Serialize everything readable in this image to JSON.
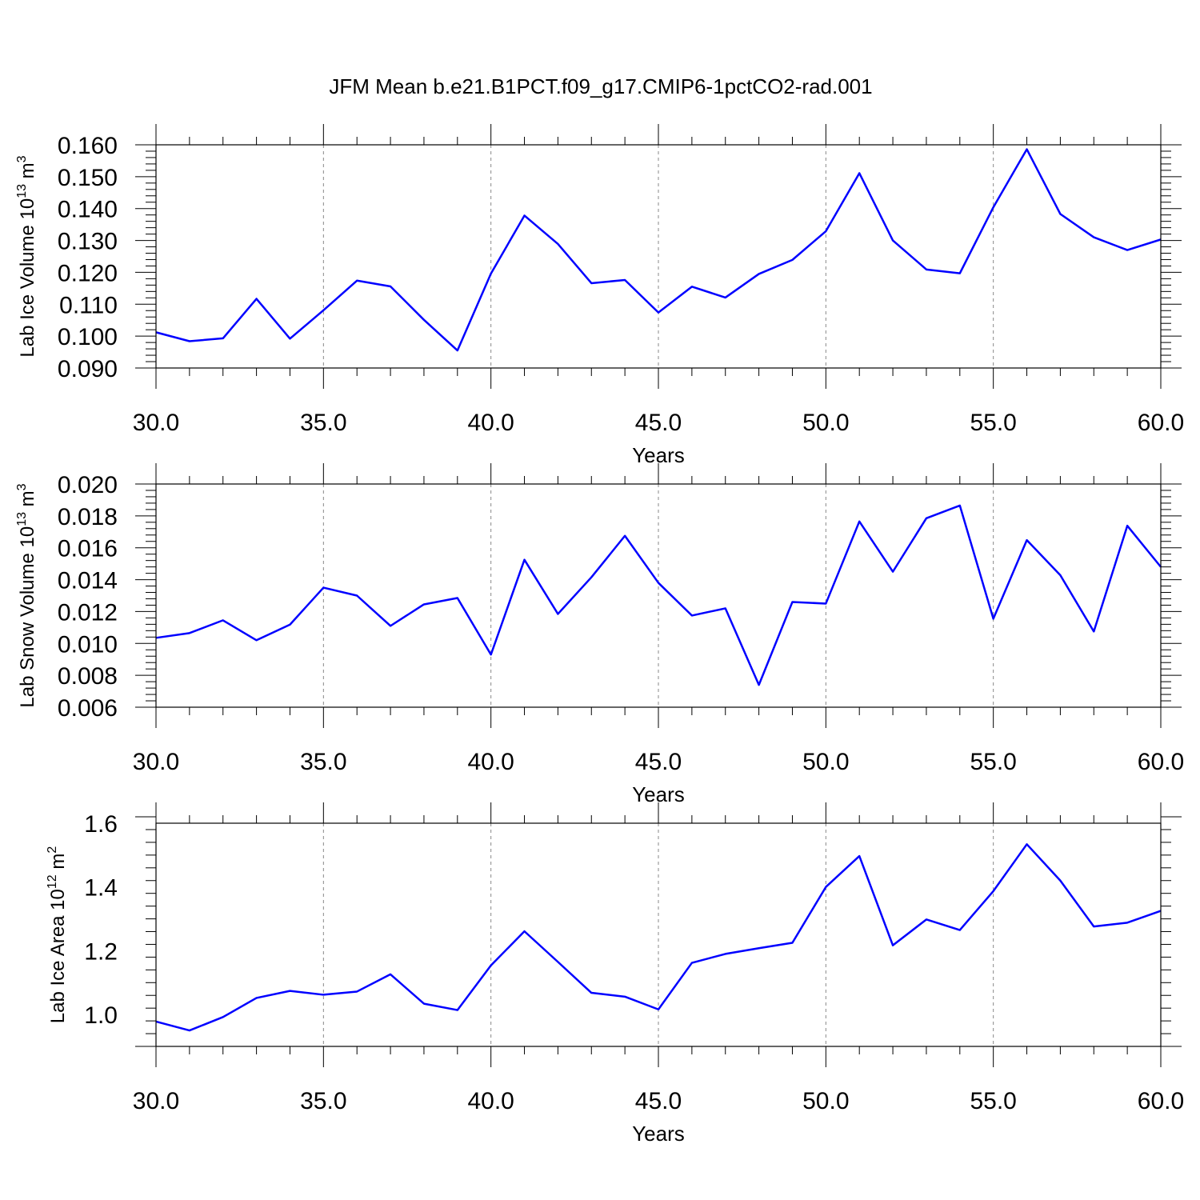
{
  "title": "JFM Mean b.e21.B1PCT.f09_g17.CMIP6-1pctCO2-rad.001",
  "colors": {
    "line": "#0000ff",
    "axis": "#000000",
    "grid": "#888888"
  },
  "chart_data": [
    {
      "type": "line",
      "ylabel": {
        "text": "Lab Ice Volume 10",
        "exp": "13",
        "unit": " m",
        "unit_exp": "3"
      },
      "xlabel": "Years",
      "xlim": [
        30,
        60
      ],
      "ylim": [
        0.09,
        0.16
      ],
      "x_ticks": [
        "30.0",
        "35.0",
        "40.0",
        "45.0",
        "50.0",
        "55.0",
        "60.0"
      ],
      "y_ticks": [
        "0.090",
        "0.100",
        "0.110",
        "0.120",
        "0.130",
        "0.140",
        "0.150",
        "0.160"
      ],
      "grid": "vertical dashed at major x ticks",
      "x": [
        30,
        31,
        32,
        33,
        34,
        35,
        36,
        37,
        38,
        39,
        40,
        41,
        42,
        43,
        44,
        45,
        46,
        47,
        48,
        49,
        50,
        51,
        52,
        53,
        54,
        55,
        56,
        57,
        58,
        59,
        60
      ],
      "values": [
        0.1012,
        0.0984,
        0.0993,
        0.1117,
        0.0992,
        0.1081,
        0.1174,
        0.1156,
        0.1051,
        0.0955,
        0.1196,
        0.1378,
        0.1289,
        0.1166,
        0.1176,
        0.1074,
        0.1155,
        0.1121,
        0.1195,
        0.1239,
        0.1329,
        0.1511,
        0.13,
        0.1209,
        0.1197,
        0.1404,
        0.1586,
        0.1383,
        0.131,
        0.127,
        0.1303
      ]
    },
    {
      "type": "line",
      "ylabel": {
        "text": "Lab Snow Volume 10",
        "exp": "13",
        "unit": " m",
        "unit_exp": "3"
      },
      "xlabel": "Years",
      "xlim": [
        30,
        60
      ],
      "ylim": [
        0.006,
        0.02
      ],
      "x_ticks": [
        "30.0",
        "35.0",
        "40.0",
        "45.0",
        "50.0",
        "55.0",
        "60.0"
      ],
      "y_ticks": [
        "0.006",
        "0.008",
        "0.010",
        "0.012",
        "0.014",
        "0.016",
        "0.018",
        "0.020"
      ],
      "grid": "vertical dashed at major x ticks",
      "x": [
        30,
        31,
        32,
        33,
        34,
        35,
        36,
        37,
        38,
        39,
        40,
        41,
        42,
        43,
        44,
        45,
        46,
        47,
        48,
        49,
        50,
        51,
        52,
        53,
        54,
        55,
        56,
        57,
        58,
        59,
        60
      ],
      "values": [
        0.01035,
        0.01065,
        0.01145,
        0.0102,
        0.01118,
        0.0135,
        0.013,
        0.0111,
        0.01245,
        0.01285,
        0.0093,
        0.01525,
        0.01185,
        0.01415,
        0.01675,
        0.0138,
        0.01175,
        0.0122,
        0.0074,
        0.0126,
        0.0125,
        0.01765,
        0.0145,
        0.01785,
        0.01865,
        0.01155,
        0.01648,
        0.01428,
        0.01075,
        0.01738,
        0.0148
      ]
    },
    {
      "type": "line",
      "ylabel": {
        "text": "Lab Ice Area 10",
        "exp": "12",
        "unit": " m",
        "unit_exp": "2"
      },
      "xlabel": "Years",
      "xlim": [
        30,
        60
      ],
      "ylim": [
        0.9,
        1.6
      ],
      "x_ticks": [
        "30.0",
        "35.0",
        "40.0",
        "45.0",
        "50.0",
        "55.0",
        "60.0"
      ],
      "y_ticks": [
        "1.0",
        "1.2",
        "1.4",
        "1.6"
      ],
      "y_tick_values": [
        1.0,
        1.2,
        1.4,
        1.6
      ],
      "grid": "vertical dashed at major x ticks",
      "x": [
        30,
        31,
        32,
        33,
        34,
        35,
        36,
        37,
        38,
        39,
        40,
        41,
        42,
        43,
        44,
        45,
        46,
        47,
        48,
        49,
        50,
        51,
        52,
        53,
        54,
        55,
        56,
        57,
        58,
        59,
        60
      ],
      "values": [
        0.978,
        0.95,
        0.992,
        1.052,
        1.074,
        1.062,
        1.072,
        1.126,
        1.034,
        1.014,
        1.154,
        1.261,
        1.165,
        1.068,
        1.056,
        1.016,
        1.162,
        1.19,
        1.208,
        1.225,
        1.4,
        1.497,
        1.217,
        1.298,
        1.265,
        1.387,
        1.534,
        1.42,
        1.276,
        1.288,
        1.325
      ]
    }
  ]
}
